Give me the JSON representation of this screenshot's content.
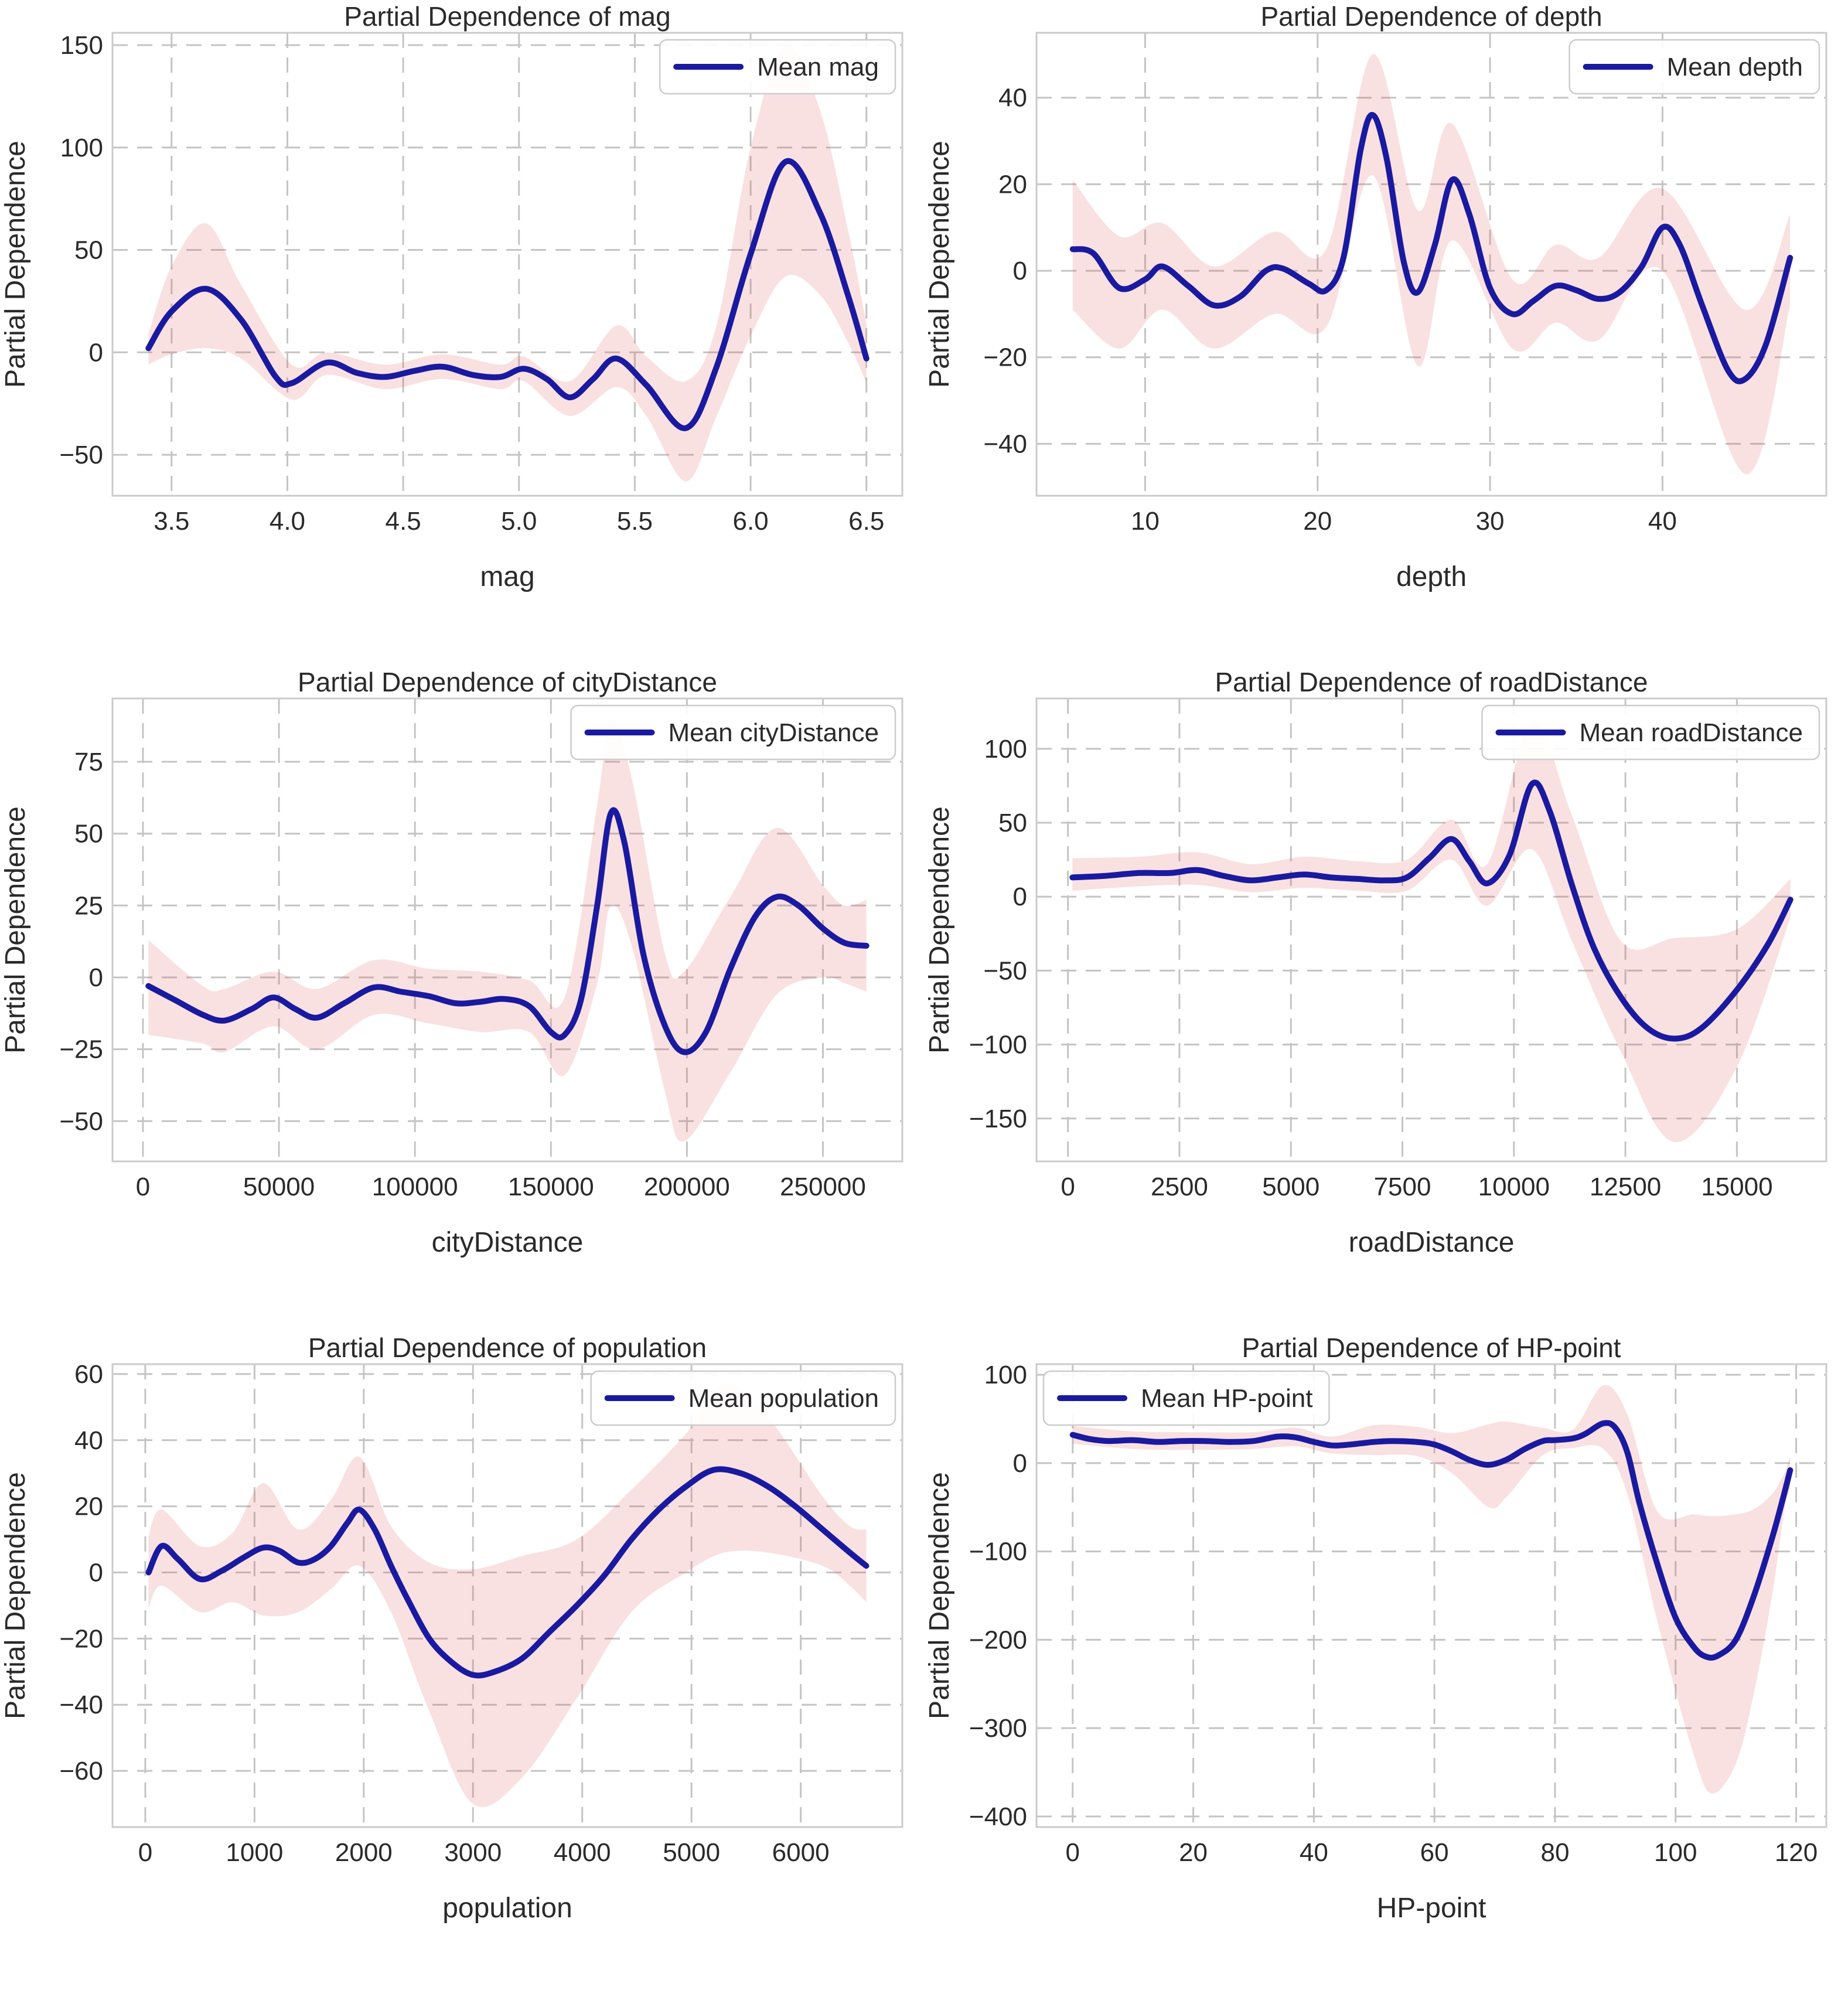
{
  "page": {
    "background": "#ffffff"
  },
  "styles": {
    "line_color": "#1a1aa0",
    "band_fill_rgb": "222,90,90",
    "band_fill_alpha": 0.18,
    "grid_color": "#c4c4c4",
    "spine_color": "#cbcbcb",
    "text_color": "#2a2a2a",
    "legend_border": "#cccccc",
    "legend_fill": "rgba(255,255,255,0.9)"
  },
  "chart_data": [
    {
      "id": "mag",
      "type": "line",
      "title": "Partial Dependence of mag",
      "xlabel": "mag",
      "ylabel": "Partial Dependence",
      "legend": {
        "label": "Mean mag",
        "position": "top-right"
      },
      "grid": true,
      "xlim": [
        3.245,
        6.655
      ],
      "ylim": [
        -70,
        156
      ],
      "xticks": {
        "values": [
          3.5,
          4.0,
          4.5,
          5.0,
          5.5,
          6.0,
          6.5
        ],
        "labels": [
          "3.5",
          "4.0",
          "4.5",
          "5.0",
          "5.5",
          "6.0",
          "6.5"
        ]
      },
      "yticks": {
        "values": [
          -50,
          0,
          50,
          100,
          150
        ],
        "labels": [
          "−50",
          "0",
          "50",
          "100",
          "150"
        ]
      },
      "series": [
        {
          "name": "Mean mag",
          "x": [
            3.4,
            3.5,
            3.65,
            3.8,
            3.95,
            4.02,
            4.17,
            4.3,
            4.42,
            4.55,
            4.67,
            4.8,
            4.92,
            5.02,
            5.12,
            5.22,
            5.32,
            5.42,
            5.55,
            5.72,
            5.85,
            6.0,
            6.15,
            6.3,
            6.42,
            6.5
          ],
          "y": [
            2,
            20,
            31,
            16,
            -12,
            -15,
            -5,
            -10,
            -12,
            -9,
            -7,
            -11,
            -12,
            -8,
            -13,
            -22,
            -13,
            -3,
            -16,
            -37,
            -8,
            48,
            93,
            68,
            28,
            -3
          ]
        }
      ],
      "band": {
        "x": [
          3.4,
          3.5,
          3.65,
          3.8,
          4.02,
          4.17,
          4.42,
          4.67,
          4.92,
          5.02,
          5.22,
          5.42,
          5.55,
          5.72,
          5.85,
          6.0,
          6.15,
          6.3,
          6.42,
          6.5
        ],
        "upper": [
          9,
          42,
          63,
          33,
          -6,
          0,
          -6,
          -1,
          -6,
          -2,
          -14,
          13,
          -2,
          -14,
          12,
          100,
          150,
          118,
          60,
          14
        ],
        "lower": [
          -6,
          -1,
          2,
          -3,
          -23,
          -11,
          -18,
          -13,
          -18,
          -14,
          -31,
          -17,
          -31,
          -63,
          -32,
          8,
          37,
          28,
          5,
          -15
        ]
      }
    },
    {
      "id": "depth",
      "type": "line",
      "title": "Partial Dependence of depth",
      "xlabel": "depth",
      "ylabel": "Partial Dependence",
      "legend": {
        "label": "Mean depth",
        "position": "top-right"
      },
      "grid": true,
      "xlim": [
        3.7,
        49.5
      ],
      "ylim": [
        -52,
        55
      ],
      "xticks": {
        "values": [
          10,
          20,
          30,
          40
        ],
        "labels": [
          "10",
          "20",
          "30",
          "40"
        ]
      },
      "yticks": {
        "values": [
          -40,
          -20,
          0,
          20,
          40
        ],
        "labels": [
          "−40",
          "−20",
          "0",
          "20",
          "40"
        ]
      },
      "series": [
        {
          "name": "Mean depth",
          "x": [
            5.8,
            7,
            8.5,
            10,
            11,
            12.5,
            14,
            15.5,
            17,
            18,
            19.5,
            20.5,
            21.5,
            22.5,
            23.2,
            24,
            25,
            25.8,
            26.8,
            27.8,
            28.8,
            30,
            31.3,
            32.5,
            33.8,
            35,
            36.3,
            37.5,
            38.8,
            40,
            41,
            42.3,
            43.8,
            44.8,
            46,
            47.4
          ],
          "y": [
            5,
            4,
            -4,
            -2,
            1,
            -3.5,
            -8,
            -6,
            0,
            0.5,
            -3,
            -4.5,
            3,
            28,
            36,
            26,
            2,
            -5,
            6,
            21,
            13,
            -4,
            -10,
            -7,
            -3.5,
            -4.5,
            -6.5,
            -5,
            1,
            10,
            6,
            -8,
            -23,
            -25,
            -17,
            3
          ]
        }
      ],
      "band": {
        "x": [
          5.8,
          8.5,
          11,
          14,
          17.5,
          20.5,
          23.2,
          25.8,
          27.8,
          31.3,
          33.8,
          36.3,
          40,
          44.8,
          47.4
        ],
        "upper": [
          21,
          8,
          11,
          1,
          9,
          5,
          50,
          14,
          34,
          -2,
          6,
          3,
          19,
          -9,
          13
        ],
        "lower": [
          -9,
          -18,
          -9,
          -18,
          -10,
          -13,
          22,
          -22,
          7,
          -18,
          -12,
          -16,
          0,
          -47,
          -8
        ]
      }
    },
    {
      "id": "cityDistance",
      "type": "line",
      "title": "Partial Dependence of cityDistance",
      "xlabel": "cityDistance",
      "ylabel": "Partial Dependence",
      "legend": {
        "label": "Mean cityDistance",
        "position": "top-right"
      },
      "grid": true,
      "xlim": [
        -11200,
        279200
      ],
      "ylim": [
        -64,
        97
      ],
      "xticks": {
        "values": [
          0,
          50000,
          100000,
          150000,
          200000,
          250000
        ],
        "labels": [
          "0",
          "50000",
          "100000",
          "150000",
          "200000",
          "250000"
        ]
      },
      "yticks": {
        "values": [
          -50,
          -25,
          0,
          25,
          50,
          75
        ],
        "labels": [
          "−50",
          "−25",
          "0",
          "25",
          "50",
          "75"
        ]
      },
      "series": [
        {
          "name": "Mean cityDistance",
          "x": [
            2000,
            12000,
            22000,
            30000,
            40000,
            48000,
            56000,
            64000,
            74000,
            85000,
            95000,
            105000,
            115000,
            124000,
            133000,
            142000,
            150000,
            155000,
            161000,
            167000,
            172000,
            177000,
            184000,
            192000,
            199000,
            207000,
            216000,
            225000,
            233000,
            241000,
            250000,
            258000,
            266000
          ],
          "y": [
            -3,
            -8,
            -13,
            -15,
            -11,
            -7,
            -11,
            -14,
            -9,
            -3.5,
            -5,
            -6.5,
            -9,
            -8.5,
            -7.5,
            -10,
            -19,
            -20,
            -8,
            25,
            57,
            47,
            8,
            -17,
            -26,
            -19,
            3,
            21,
            28,
            25,
            17,
            12,
            11
          ]
        }
      ],
      "band": {
        "x": [
          2000,
          22000,
          30000,
          48000,
          64000,
          85000,
          105000,
          124000,
          142000,
          155000,
          167000,
          172000,
          180000,
          192000,
          199000,
          216000,
          233000,
          250000,
          258000,
          266000
        ],
        "upper": [
          13,
          -3,
          -4,
          2,
          -4,
          6,
          3,
          2,
          -1,
          -7,
          60,
          90,
          68,
          8,
          2,
          28,
          52,
          32,
          25,
          27
        ],
        "lower": [
          -20,
          -23,
          -26,
          -17,
          -25,
          -13,
          -16,
          -19,
          -19,
          -34,
          -2,
          25,
          10,
          -40,
          -57,
          -33,
          -6,
          0,
          -2,
          -5
        ]
      }
    },
    {
      "id": "roadDistance",
      "type": "line",
      "title": "Partial Dependence of roadDistance",
      "xlabel": "roadDistance",
      "ylabel": "Partial Dependence",
      "legend": {
        "label": "Mean roadDistance",
        "position": "top-right"
      },
      "grid": true,
      "xlim": [
        -705,
        17005
      ],
      "ylim": [
        -179,
        134
      ],
      "xticks": {
        "values": [
          0,
          2500,
          5000,
          7500,
          10000,
          12500,
          15000
        ],
        "labels": [
          "0",
          "2500",
          "5000",
          "7500",
          "10000",
          "12500",
          "15000"
        ]
      },
      "yticks": {
        "values": [
          -150,
          -100,
          -50,
          0,
          50,
          100
        ],
        "labels": [
          "−150",
          "−100",
          "−50",
          "0",
          "50",
          "100"
        ]
      },
      "series": [
        {
          "name": "Mean roadDistance",
          "x": [
            100,
            800,
            1600,
            2300,
            2900,
            3500,
            4100,
            4700,
            5300,
            5900,
            6500,
            7100,
            7600,
            8100,
            8600,
            9000,
            9400,
            9900,
            10400,
            10800,
            11300,
            11800,
            12400,
            13000,
            13600,
            14200,
            15000,
            15700,
            16200
          ],
          "y": [
            13,
            14,
            16,
            16,
            18,
            14,
            11,
            13,
            15,
            13,
            12,
            11,
            13,
            26,
            39,
            24,
            9,
            28,
            76,
            58,
            8,
            -35,
            -68,
            -89,
            -96,
            -89,
            -63,
            -32,
            -2
          ]
        }
      ],
      "band": {
        "x": [
          100,
          1600,
          2900,
          4100,
          5300,
          6500,
          7600,
          8600,
          9400,
          10400,
          11300,
          12400,
          13600,
          15000,
          16200
        ],
        "upper": [
          26,
          27,
          30,
          22,
          27,
          24,
          25,
          52,
          22,
          118,
          55,
          -30,
          -28,
          -22,
          12
        ],
        "lower": [
          4,
          7,
          8,
          3,
          6,
          4,
          4,
          25,
          -6,
          32,
          -30,
          -105,
          -166,
          -115,
          -14
        ]
      }
    },
    {
      "id": "population",
      "type": "line",
      "title": "Partial Dependence of population",
      "xlabel": "population",
      "ylabel": "Partial Dependence",
      "legend": {
        "label": "Mean population",
        "position": "top-right"
      },
      "grid": true,
      "xlim": [
        -300,
        6930
      ],
      "ylim": [
        -77,
        63
      ],
      "xticks": {
        "values": [
          0,
          1000,
          2000,
          3000,
          4000,
          5000,
          6000
        ],
        "labels": [
          "0",
          "1000",
          "2000",
          "3000",
          "4000",
          "5000",
          "6000"
        ]
      },
      "yticks": {
        "values": [
          -60,
          -40,
          -20,
          0,
          20,
          40,
          60
        ],
        "labels": [
          "−60",
          "−40",
          "−20",
          "0",
          "20",
          "40",
          "60"
        ]
      },
      "series": [
        {
          "name": "Mean population",
          "x": [
            30,
            150,
            300,
            500,
            700,
            900,
            1080,
            1230,
            1400,
            1550,
            1700,
            1850,
            1960,
            2100,
            2250,
            2400,
            2600,
            2800,
            3000,
            3200,
            3450,
            3700,
            3950,
            4200,
            4450,
            4700,
            4950,
            5200,
            5450,
            5700,
            5950,
            6200,
            6450,
            6600
          ],
          "y": [
            0,
            8,
            4,
            -2,
            0.5,
            4.5,
            7.5,
            6.5,
            3,
            4,
            8,
            15,
            19,
            13,
            2,
            -8,
            -20,
            -27,
            -31,
            -30,
            -26,
            -18,
            -10,
            -1,
            10,
            19,
            26,
            31,
            30,
            26,
            20,
            13,
            6,
            2
          ]
        }
      ],
      "band": {
        "x": [
          30,
          150,
          500,
          800,
          1080,
          1400,
          1700,
          1960,
          2250,
          2600,
          3000,
          3450,
          3950,
          4450,
          4950,
          5300,
          5700,
          6200,
          6450,
          6600
        ],
        "upper": [
          11,
          19,
          8,
          12,
          27,
          13,
          22,
          35,
          14,
          3,
          1,
          5,
          10,
          25,
          42,
          57,
          47,
          23,
          14,
          13
        ],
        "lower": [
          -11,
          -4,
          -12,
          -9,
          -13,
          -12,
          -5,
          2,
          -12,
          -42,
          -70,
          -62,
          -38,
          -12,
          0,
          6,
          6,
          2,
          -4,
          -9
        ]
      }
    },
    {
      "id": "HP-point",
      "type": "line",
      "title": "Partial Dependence of HP-point",
      "xlabel": "HP-point",
      "ylabel": "Partial Dependence",
      "legend": {
        "label": "Mean HP-point",
        "position": "top-left"
      },
      "grid": true,
      "xlim": [
        -6,
        125
      ],
      "ylim": [
        -412,
        112
      ],
      "xticks": {
        "values": [
          0,
          20,
          40,
          60,
          80,
          100,
          120
        ],
        "labels": [
          "0",
          "20",
          "40",
          "60",
          "80",
          "100",
          "120"
        ]
      },
      "yticks": {
        "values": [
          -400,
          -300,
          -200,
          -100,
          0,
          100
        ],
        "labels": [
          "−400",
          "−300",
          "−200",
          "−100",
          "0",
          "100"
        ]
      },
      "series": [
        {
          "name": "Mean HP-point",
          "x": [
            0,
            3,
            6,
            10,
            14,
            18,
            22,
            26,
            30,
            34,
            37,
            40,
            43,
            46,
            50,
            53,
            57,
            60,
            63,
            66,
            69,
            72,
            75,
            78,
            80,
            83,
            85,
            88,
            90,
            92,
            94,
            97,
            100,
            103,
            105,
            107,
            110,
            113,
            116,
            118,
            119
          ],
          "y": [
            32,
            27,
            25,
            26,
            24,
            25,
            25,
            24,
            25,
            30,
            29,
            24,
            20,
            21,
            24,
            25,
            24,
            21,
            13,
            3,
            -2,
            4,
            16,
            25,
            26,
            28,
            33,
            45,
            40,
            12,
            -45,
            -115,
            -175,
            -208,
            -219,
            -218,
            -200,
            -150,
            -85,
            -35,
            -8
          ]
        }
      ],
      "band": {
        "x": [
          0,
          10,
          20,
          30,
          37,
          43,
          50,
          57,
          63,
          69,
          72,
          78,
          83,
          88,
          92,
          97,
          103,
          106,
          110,
          113,
          116,
          118,
          119
        ],
        "upper": [
          42,
          36,
          35,
          35,
          40,
          30,
          43,
          41,
          34,
          44,
          47,
          40,
          38,
          88,
          55,
          -55,
          -58,
          -60,
          -58,
          -52,
          -35,
          -12,
          8
        ],
        "lower": [
          22,
          16,
          15,
          16,
          19,
          11,
          9,
          8,
          -12,
          -50,
          -38,
          9,
          17,
          16,
          -35,
          -180,
          -330,
          -374,
          -340,
          -260,
          -150,
          -55,
          -28
        ]
      }
    }
  ]
}
